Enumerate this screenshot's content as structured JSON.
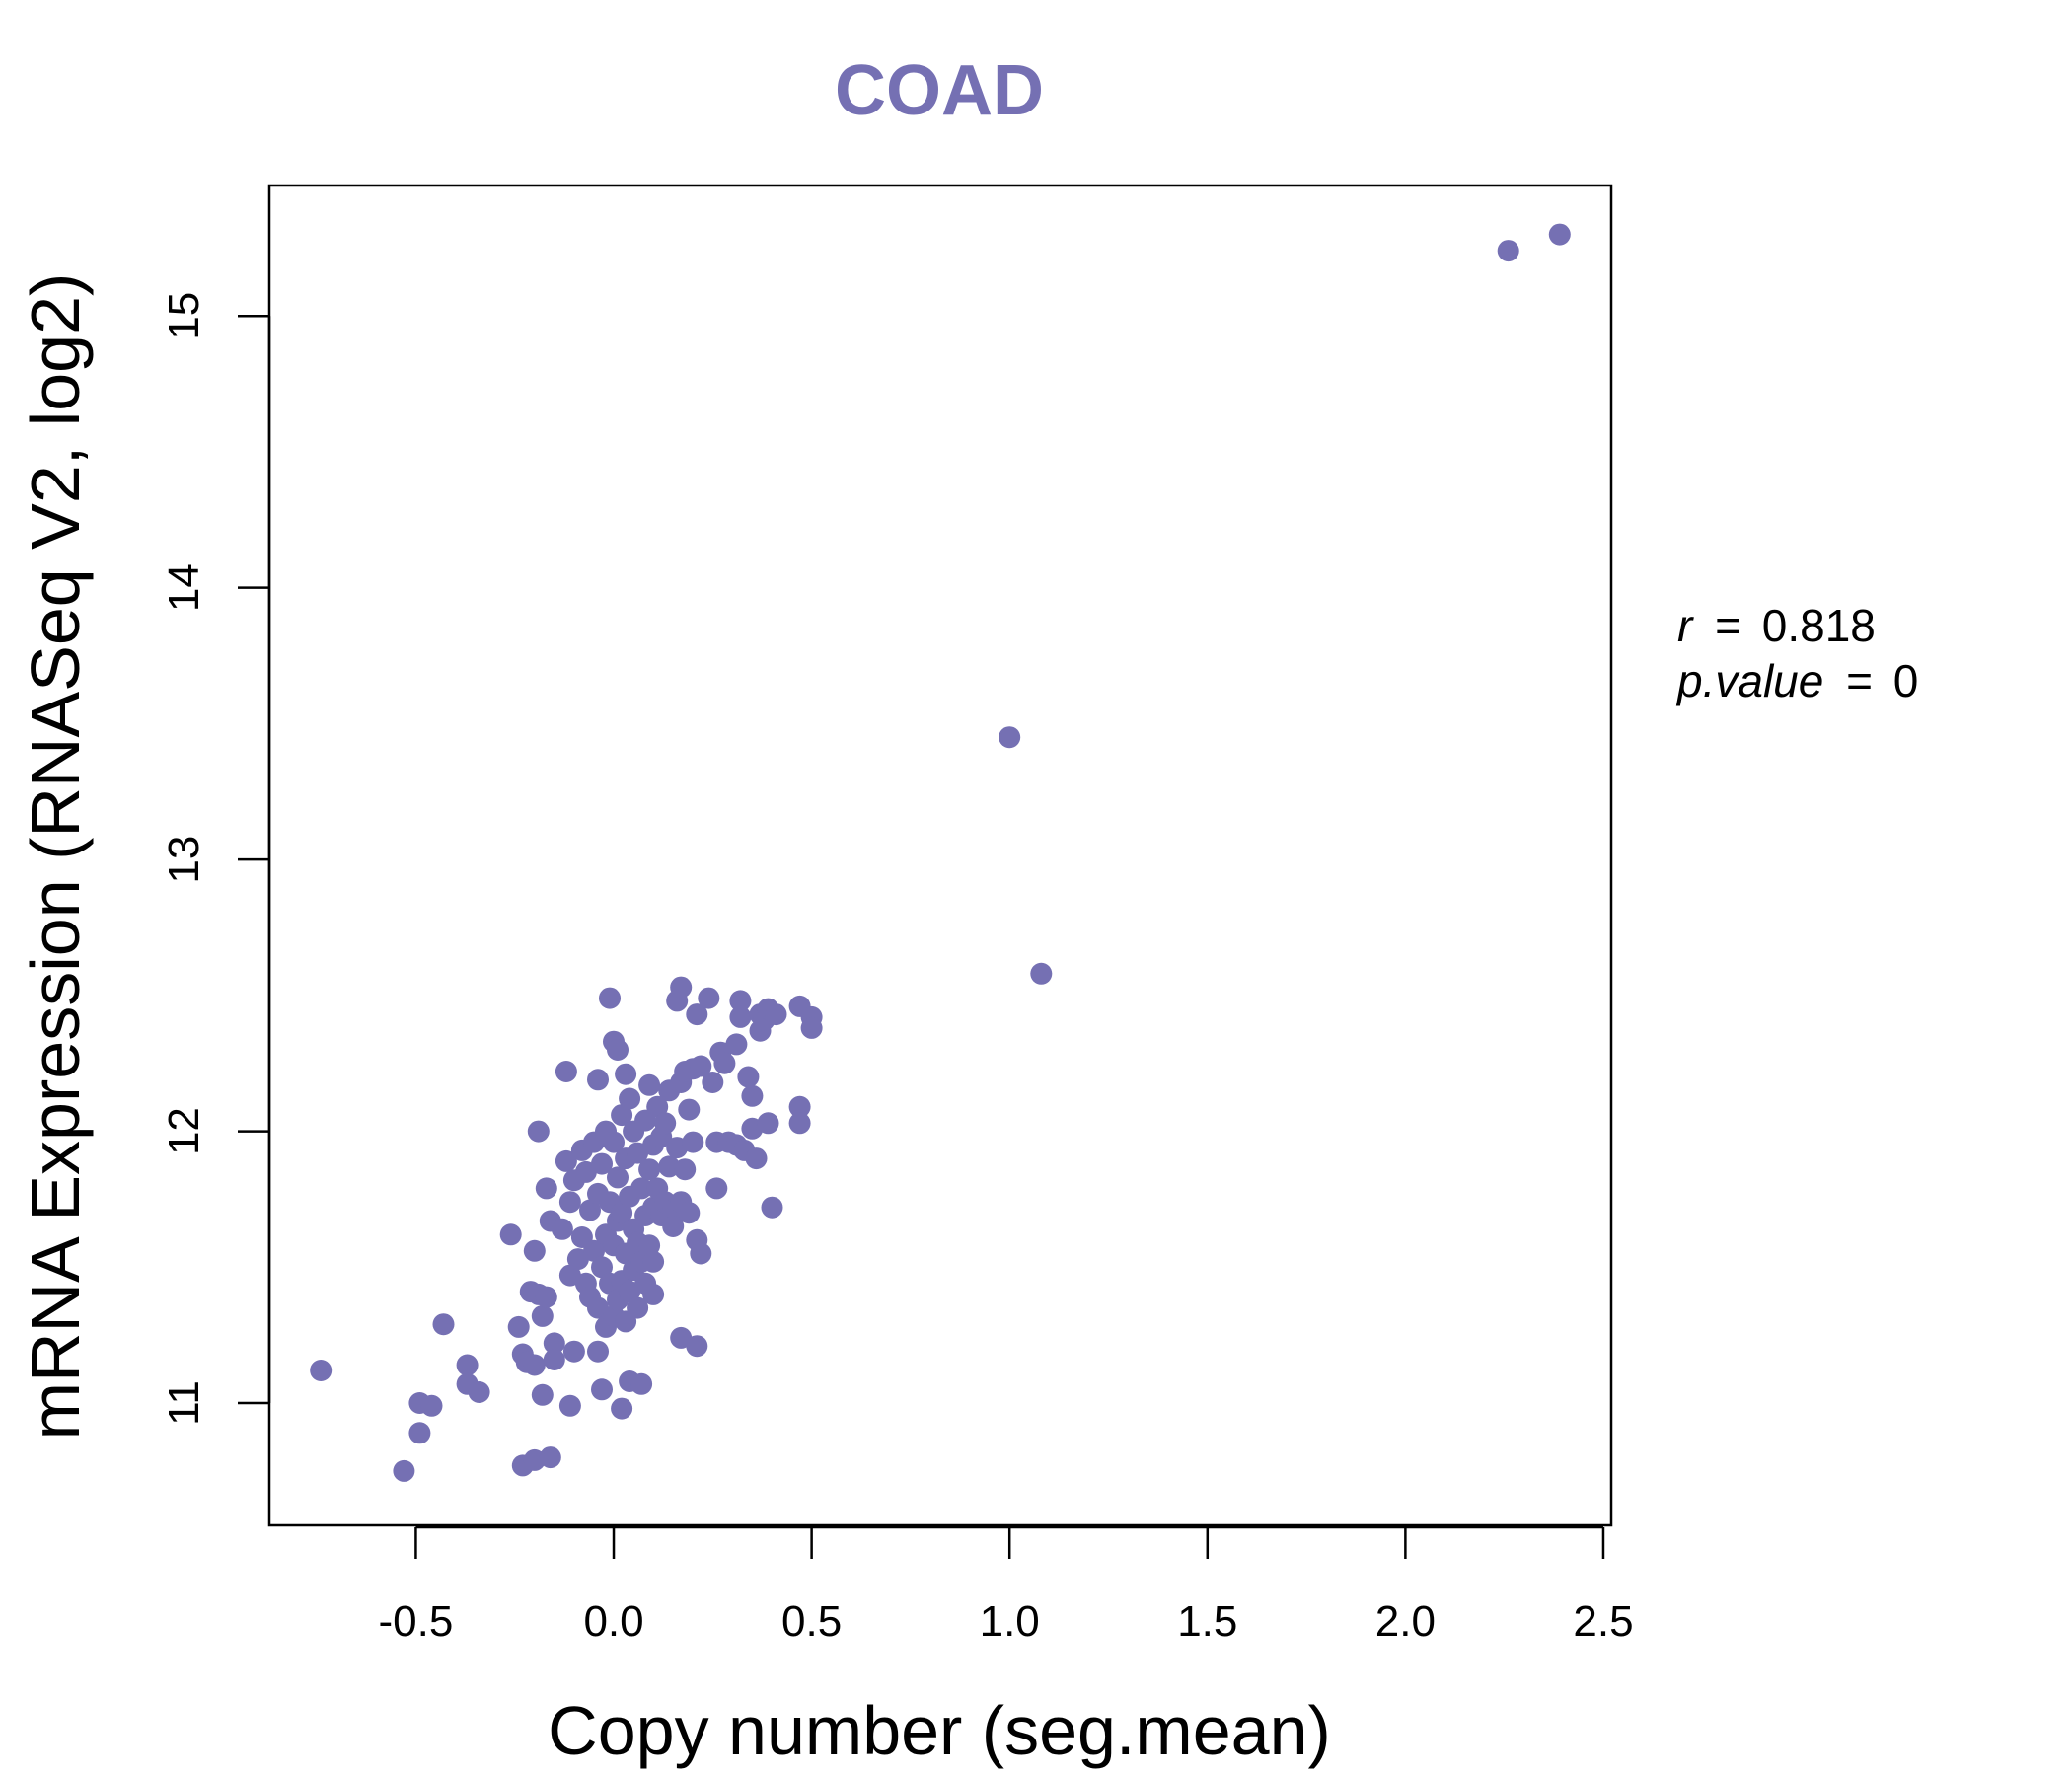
{
  "chart_data": {
    "type": "scatter",
    "title": "COAD",
    "xlabel": "Copy number (seg.mean)",
    "ylabel": "mRNA Expression (RNASeq V2, log2)",
    "xlim": [
      -0.87,
      2.52
    ],
    "ylim": [
      10.55,
      15.48
    ],
    "xticks": [
      -0.5,
      0.0,
      0.5,
      1.0,
      1.5,
      2.0,
      2.5
    ],
    "xtick_labels": [
      "-0.5",
      "0.0",
      "0.5",
      "1.0",
      "1.5",
      "2.0",
      "2.5"
    ],
    "yticks": [
      11,
      12,
      13,
      14,
      15
    ],
    "ytick_labels": [
      "11",
      "12",
      "13",
      "14",
      "15"
    ],
    "grid": false,
    "color": "#7570b3",
    "annotation": {
      "r_symbol": "r",
      "r_value": "0.818",
      "p_symbol": "p.value",
      "p_value": "0",
      "equals": "="
    },
    "points": [
      [
        2.39,
        15.3
      ],
      [
        2.26,
        15.24
      ],
      [
        1.0,
        13.45
      ],
      [
        1.08,
        12.58
      ],
      [
        -0.74,
        11.12
      ],
      [
        -0.53,
        10.75
      ],
      [
        -0.49,
        10.89
      ],
      [
        -0.49,
        11.0
      ],
      [
        -0.46,
        10.99
      ],
      [
        -0.43,
        11.29
      ],
      [
        -0.37,
        11.14
      ],
      [
        -0.37,
        11.07
      ],
      [
        -0.34,
        11.04
      ],
      [
        -0.26,
        11.62
      ],
      [
        -0.24,
        11.28
      ],
      [
        -0.23,
        11.18
      ],
      [
        -0.23,
        10.77
      ],
      [
        -0.22,
        11.15
      ],
      [
        -0.21,
        11.41
      ],
      [
        -0.2,
        11.56
      ],
      [
        -0.2,
        11.14
      ],
      [
        -0.2,
        10.79
      ],
      [
        -0.19,
        12.0
      ],
      [
        -0.19,
        11.4
      ],
      [
        -0.18,
        11.32
      ],
      [
        -0.18,
        11.03
      ],
      [
        -0.17,
        11.79
      ],
      [
        -0.17,
        11.39
      ],
      [
        -0.16,
        11.67
      ],
      [
        -0.16,
        10.8
      ],
      [
        -0.15,
        11.22
      ],
      [
        -0.15,
        11.16
      ],
      [
        -0.13,
        11.64
      ],
      [
        -0.12,
        12.22
      ],
      [
        -0.12,
        11.89
      ],
      [
        -0.11,
        11.74
      ],
      [
        -0.11,
        11.47
      ],
      [
        -0.11,
        10.99
      ],
      [
        -0.1,
        11.82
      ],
      [
        -0.1,
        11.19
      ],
      [
        -0.09,
        11.53
      ],
      [
        -0.08,
        11.93
      ],
      [
        -0.08,
        11.61
      ],
      [
        -0.07,
        11.85
      ],
      [
        -0.07,
        11.44
      ],
      [
        -0.06,
        11.71
      ],
      [
        -0.06,
        11.39
      ],
      [
        -0.05,
        11.96
      ],
      [
        -0.05,
        11.56
      ],
      [
        -0.04,
        12.19
      ],
      [
        -0.04,
        11.77
      ],
      [
        -0.04,
        11.35
      ],
      [
        -0.04,
        11.19
      ],
      [
        -0.03,
        11.88
      ],
      [
        -0.03,
        11.5
      ],
      [
        -0.03,
        11.05
      ],
      [
        -0.02,
        12.0
      ],
      [
        -0.02,
        11.62
      ],
      [
        -0.02,
        11.28
      ],
      [
        -0.01,
        12.49
      ],
      [
        -0.01,
        11.74
      ],
      [
        -0.01,
        11.44
      ],
      [
        0.0,
        12.33
      ],
      [
        0.0,
        11.96
      ],
      [
        0.0,
        11.58
      ],
      [
        0.0,
        11.32
      ],
      [
        0.01,
        12.3
      ],
      [
        0.01,
        11.83
      ],
      [
        0.01,
        11.67
      ],
      [
        0.01,
        11.38
      ],
      [
        0.02,
        12.06
      ],
      [
        0.02,
        11.7
      ],
      [
        0.02,
        11.45
      ],
      [
        0.02,
        10.98
      ],
      [
        0.03,
        12.21
      ],
      [
        0.03,
        11.9
      ],
      [
        0.03,
        11.55
      ],
      [
        0.03,
        11.3
      ],
      [
        0.04,
        12.12
      ],
      [
        0.04,
        11.76
      ],
      [
        0.04,
        11.41
      ],
      [
        0.04,
        11.08
      ],
      [
        0.05,
        12.0
      ],
      [
        0.05,
        11.64
      ],
      [
        0.05,
        11.49
      ],
      [
        0.06,
        11.92
      ],
      [
        0.06,
        11.59
      ],
      [
        0.06,
        11.35
      ],
      [
        0.07,
        11.79
      ],
      [
        0.07,
        11.52
      ],
      [
        0.07,
        11.07
      ],
      [
        0.08,
        12.04
      ],
      [
        0.08,
        11.69
      ],
      [
        0.08,
        11.44
      ],
      [
        0.09,
        12.17
      ],
      [
        0.09,
        11.86
      ],
      [
        0.09,
        11.58
      ],
      [
        0.1,
        11.95
      ],
      [
        0.1,
        11.72
      ],
      [
        0.1,
        11.52
      ],
      [
        0.1,
        11.4
      ],
      [
        0.11,
        12.09
      ],
      [
        0.11,
        11.79
      ],
      [
        0.12,
        11.98
      ],
      [
        0.12,
        11.69
      ],
      [
        0.13,
        12.03
      ],
      [
        0.13,
        11.74
      ],
      [
        0.14,
        12.15
      ],
      [
        0.14,
        11.87
      ],
      [
        0.15,
        11.71
      ],
      [
        0.15,
        11.65
      ],
      [
        0.16,
        12.48
      ],
      [
        0.16,
        11.94
      ],
      [
        0.17,
        12.53
      ],
      [
        0.17,
        12.18
      ],
      [
        0.17,
        11.74
      ],
      [
        0.17,
        11.24
      ],
      [
        0.18,
        12.22
      ],
      [
        0.18,
        11.86
      ],
      [
        0.19,
        12.08
      ],
      [
        0.19,
        11.7
      ],
      [
        0.2,
        12.23
      ],
      [
        0.2,
        11.96
      ],
      [
        0.21,
        12.43
      ],
      [
        0.21,
        11.6
      ],
      [
        0.21,
        11.21
      ],
      [
        0.22,
        12.24
      ],
      [
        0.22,
        11.55
      ],
      [
        0.24,
        12.49
      ],
      [
        0.25,
        12.18
      ],
      [
        0.26,
        11.96
      ],
      [
        0.26,
        11.79
      ],
      [
        0.27,
        12.29
      ],
      [
        0.28,
        12.25
      ],
      [
        0.29,
        11.96
      ],
      [
        0.31,
        12.32
      ],
      [
        0.31,
        11.95
      ],
      [
        0.32,
        12.48
      ],
      [
        0.32,
        12.42
      ],
      [
        0.33,
        11.93
      ],
      [
        0.34,
        12.2
      ],
      [
        0.35,
        12.13
      ],
      [
        0.35,
        12.01
      ],
      [
        0.36,
        11.9
      ],
      [
        0.37,
        12.43
      ],
      [
        0.37,
        12.37
      ],
      [
        0.38,
        12.41
      ],
      [
        0.39,
        12.45
      ],
      [
        0.39,
        12.03
      ],
      [
        0.4,
        11.72
      ],
      [
        0.41,
        12.43
      ],
      [
        0.47,
        12.46
      ],
      [
        0.47,
        12.09
      ],
      [
        0.47,
        12.03
      ],
      [
        0.5,
        12.42
      ],
      [
        0.5,
        12.38
      ]
    ]
  }
}
